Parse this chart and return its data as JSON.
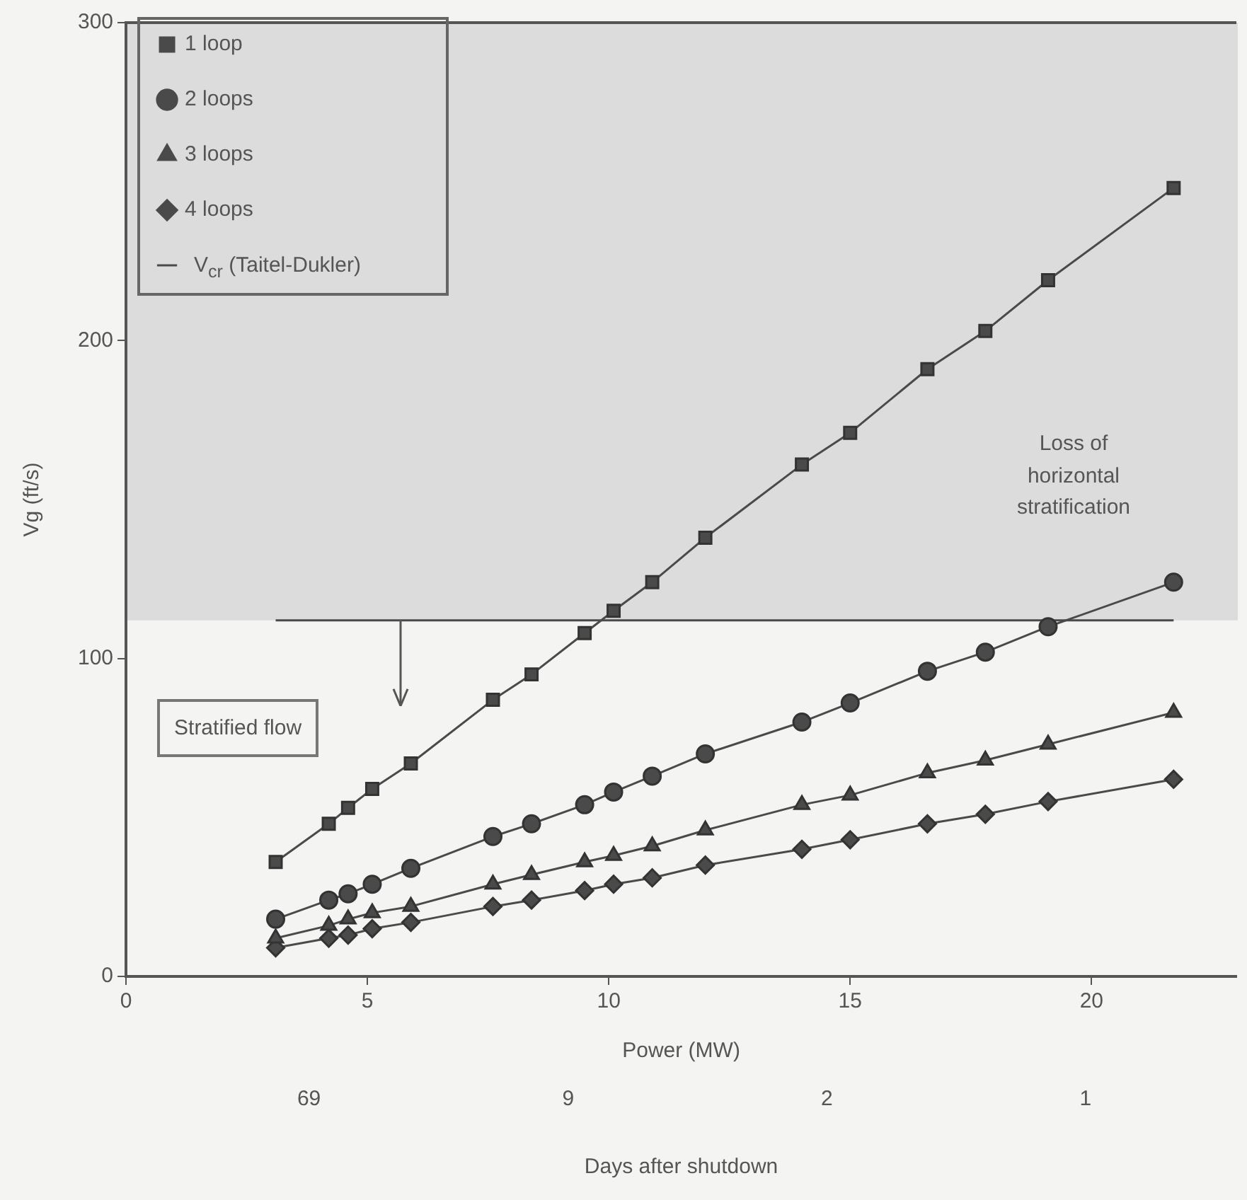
{
  "chart_data": {
    "type": "line",
    "xlabel": "Power (MW)",
    "ylabel": "Vg (ft/s)",
    "x2label": "Days after shutdown",
    "xlim": [
      0,
      23
    ],
    "xticks": [
      0,
      5,
      10,
      15,
      20
    ],
    "ylim": [
      0,
      300
    ],
    "yticks": [
      0,
      100,
      200,
      300
    ],
    "x": [
      3.1,
      4.2,
      4.6,
      5.1,
      5.9,
      7.6,
      8.4,
      9.5,
      10.1,
      10.9,
      12.0,
      14.0,
      15.0,
      16.6,
      17.8,
      19.1,
      21.7
    ],
    "series": [
      {
        "name": "1 loop",
        "color": "#4a4a4a",
        "marker": "square",
        "values": [
          36,
          48,
          53,
          59,
          67,
          87,
          95,
          108,
          115,
          124,
          138,
          161,
          171,
          191,
          203,
          219,
          248
        ]
      },
      {
        "name": "2 loops",
        "color": "#4a4a4a",
        "marker": "circle",
        "values": [
          18,
          24,
          26,
          29,
          34,
          44,
          48,
          54,
          58,
          63,
          70,
          80,
          86,
          96,
          102,
          110,
          124
        ]
      },
      {
        "name": "3 loops",
        "color": "#4a4a4a",
        "marker": "triangle",
        "values": [
          12,
          16,
          18,
          20,
          22,
          29,
          32,
          36,
          38,
          41,
          46,
          54,
          57,
          64,
          68,
          73,
          83
        ]
      },
      {
        "name": "4 loops",
        "color": "#4a4a4a",
        "marker": "diamond",
        "values": [
          9,
          12,
          13,
          15,
          17,
          22,
          24,
          27,
          29,
          31,
          35,
          40,
          43,
          48,
          51,
          55,
          62
        ]
      },
      {
        "name": "V$_{cr}$ (Taitel-Dukler)",
        "color": "#4a4a4a",
        "marker": "none",
        "x": [
          3.1,
          21.7
        ],
        "values": [
          112,
          112
        ]
      }
    ],
    "bands": [
      {
        "axis": "y",
        "from": 112,
        "to": 300,
        "label": "Loss of horizontal stratification",
        "color": "#dcdcdc"
      }
    ],
    "annotations": [
      "Stratified flow",
      "69",
      "9",
      "2",
      "1"
    ],
    "legend": "top left",
    "grid": false
  }
}
